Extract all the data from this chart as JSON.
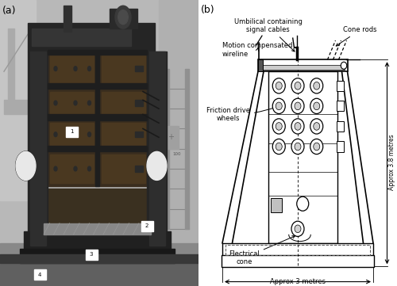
{
  "fig_width": 5.0,
  "fig_height": 3.61,
  "dpi": 100,
  "bg_color": "#ffffff",
  "label_a": "(a)",
  "label_b": "(b)",
  "line_color": "#000000",
  "annotations": {
    "umbilical": "Umbilical containing\nsignal cables",
    "motion": "Motion compensated\nwireline",
    "cone_rods": "Cone rods",
    "friction": "Friction drive\nwheels",
    "electrical": "Electrical\ncone",
    "approx_3": "Approx 3 metres",
    "approx_38": "Approx 3.8 metres"
  },
  "photo_colors": {
    "sky_bg": "#c8c8c8",
    "workshop_bg": "#b0b0b0",
    "frame_dark": "#2a2a2a",
    "frame_mid": "#3a3a3a",
    "panel_body": "#4a3a2a",
    "panel_dark": "#3a2a18",
    "floor_dark": "#1a1a1a",
    "floor_mid": "#555555",
    "white_circle": "#e8e8e8",
    "right_bg": "#a0a0a0"
  }
}
